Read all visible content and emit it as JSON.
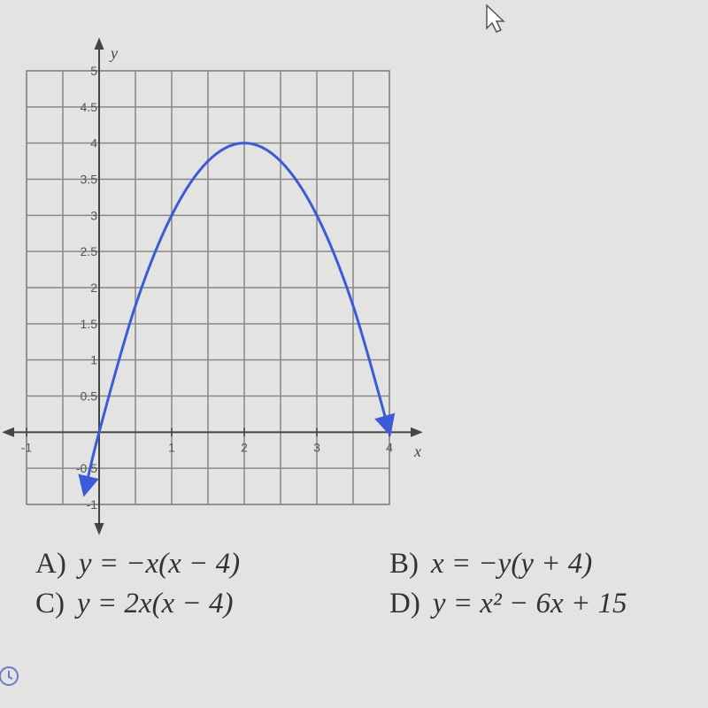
{
  "chart_data": {
    "type": "line",
    "x": [
      -0.2,
      0,
      0.5,
      1,
      1.5,
      2,
      2.5,
      3,
      3.5,
      4
    ],
    "values": [
      -0.84,
      0,
      1.75,
      3,
      3.75,
      4,
      3.75,
      3,
      1.75,
      0
    ],
    "color": "#3b5bd8",
    "xlim": [
      -1,
      4
    ],
    "ylim": [
      -1,
      5
    ],
    "xticks": [
      -1,
      1,
      2,
      3,
      4
    ],
    "yticks": [
      -1,
      -0.5,
      0.5,
      1,
      1.5,
      2,
      2.5,
      3,
      3.5,
      4,
      4.5,
      5
    ],
    "xgrid": [
      -1,
      -0.5,
      0,
      0.5,
      1,
      1.5,
      2,
      2.5,
      3,
      3.5,
      4
    ],
    "grid": true,
    "xlabel": "x",
    "ylabel": "y"
  },
  "choices": [
    {
      "letter": "A)",
      "text": "y = −x(x − 4)"
    },
    {
      "letter": "B)",
      "text": "x = −y(y + 4)"
    },
    {
      "letter": "C)",
      "text": "y = 2x(x − 4)"
    },
    {
      "letter": "D)",
      "text": "y = x² − 6x + 15"
    }
  ]
}
